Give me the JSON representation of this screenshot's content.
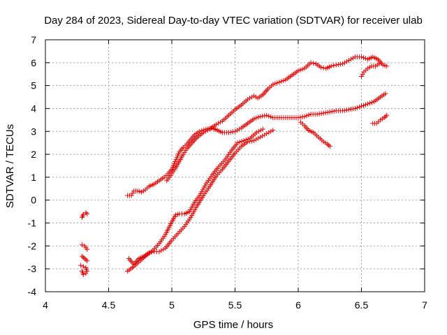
{
  "chart_data": {
    "type": "scatter",
    "title": "Day 284 of 2023, Sidereal Day-to-day VTEC variation (SDTVAR) for receiver ulab",
    "xlabel": "GPS time / hours",
    "ylabel": "SDTVAR / TECUs",
    "xlim": [
      4,
      7
    ],
    "ylim": [
      -4,
      7
    ],
    "xticks": [
      "4",
      "4.5",
      "5",
      "5.5",
      "6",
      "6.5",
      "7"
    ],
    "yticks": [
      "-4",
      "-3",
      "-2",
      "-1",
      "0",
      "1",
      "2",
      "3",
      "4",
      "5",
      "6",
      "7"
    ],
    "grid": true,
    "marker": "+",
    "marker_color": "#e00000",
    "tracks": [
      [
        [
          4.29,
          -0.75
        ],
        [
          4.3,
          -0.62
        ],
        [
          4.32,
          -0.55
        ],
        [
          4.33,
          -0.6
        ]
      ],
      [
        [
          4.29,
          -1.95
        ],
        [
          4.31,
          -2.0
        ],
        [
          4.33,
          -2.15
        ]
      ],
      [
        [
          4.29,
          -2.45
        ],
        [
          4.3,
          -2.5
        ],
        [
          4.32,
          -2.6
        ],
        [
          4.33,
          -2.65
        ]
      ],
      [
        [
          4.28,
          -2.85
        ],
        [
          4.3,
          -2.9
        ],
        [
          4.32,
          -2.95
        ],
        [
          4.33,
          -3.1
        ]
      ],
      [
        [
          4.29,
          -3.1
        ],
        [
          4.3,
          -3.25
        ],
        [
          4.32,
          -3.2
        ]
      ],
      [
        [
          4.65,
          0.2
        ],
        [
          4.68,
          0.2
        ],
        [
          4.7,
          0.4
        ],
        [
          4.73,
          0.4
        ],
        [
          4.76,
          0.35
        ],
        [
          4.79,
          0.45
        ],
        [
          4.82,
          0.6
        ],
        [
          4.86,
          0.7
        ],
        [
          4.9,
          0.85
        ],
        [
          4.94,
          1.0
        ],
        [
          4.97,
          1.15
        ],
        [
          5.0,
          1.35
        ],
        [
          5.02,
          1.6
        ],
        [
          5.04,
          1.85
        ],
        [
          5.06,
          2.1
        ],
        [
          5.09,
          2.3
        ],
        [
          5.12,
          2.45
        ],
        [
          5.15,
          2.65
        ],
        [
          5.18,
          2.85
        ],
        [
          5.22,
          3.0
        ],
        [
          5.27,
          3.1
        ],
        [
          5.32,
          3.15
        ],
        [
          5.36,
          3.05
        ],
        [
          5.4,
          2.95
        ],
        [
          5.45,
          2.95
        ],
        [
          5.5,
          3.0
        ],
        [
          5.55,
          3.15
        ],
        [
          5.6,
          3.35
        ],
        [
          5.65,
          3.55
        ],
        [
          5.7,
          3.65
        ],
        [
          5.75,
          3.7
        ],
        [
          5.8,
          3.6
        ],
        [
          5.85,
          3.6
        ],
        [
          5.9,
          3.6
        ],
        [
          5.95,
          3.6
        ],
        [
          6.0,
          3.6
        ],
        [
          6.05,
          3.65
        ],
        [
          6.1,
          3.75
        ],
        [
          6.15,
          3.75
        ],
        [
          6.2,
          3.8
        ],
        [
          6.25,
          3.85
        ],
        [
          6.3,
          3.9
        ],
        [
          6.35,
          3.9
        ],
        [
          6.4,
          3.95
        ],
        [
          6.45,
          4.0
        ],
        [
          6.5,
          4.1
        ],
        [
          6.55,
          4.2
        ],
        [
          6.6,
          4.3
        ],
        [
          6.65,
          4.5
        ],
        [
          6.69,
          4.65
        ]
      ],
      [
        [
          4.96,
          0.85
        ],
        [
          4.98,
          1.0
        ],
        [
          5.0,
          1.15
        ],
        [
          5.03,
          1.4
        ],
        [
          5.06,
          1.7
        ],
        [
          5.09,
          2.0
        ],
        [
          5.12,
          2.25
        ],
        [
          5.16,
          2.5
        ],
        [
          5.2,
          2.75
        ],
        [
          5.25,
          2.95
        ],
        [
          5.3,
          3.1
        ],
        [
          5.35,
          3.3
        ],
        [
          5.4,
          3.45
        ],
        [
          5.45,
          3.7
        ],
        [
          5.5,
          3.95
        ],
        [
          5.55,
          4.15
        ],
        [
          5.6,
          4.4
        ],
        [
          5.65,
          4.55
        ],
        [
          5.68,
          4.45
        ],
        [
          5.72,
          4.6
        ],
        [
          5.76,
          4.85
        ],
        [
          5.8,
          5.05
        ],
        [
          5.85,
          5.15
        ],
        [
          5.9,
          5.25
        ],
        [
          5.95,
          5.45
        ],
        [
          6.0,
          5.65
        ],
        [
          6.05,
          5.75
        ],
        [
          6.1,
          6.0
        ],
        [
          6.14,
          5.95
        ],
        [
          6.18,
          5.8
        ],
        [
          6.22,
          5.75
        ],
        [
          6.26,
          5.85
        ],
        [
          6.3,
          5.9
        ],
        [
          6.35,
          5.95
        ],
        [
          6.4,
          6.1
        ],
        [
          6.45,
          6.25
        ],
        [
          6.5,
          6.25
        ],
        [
          6.55,
          6.15
        ],
        [
          6.59,
          6.25
        ],
        [
          6.63,
          6.15
        ],
        [
          6.67,
          5.9
        ],
        [
          6.7,
          5.85
        ]
      ],
      [
        [
          6.5,
          5.4
        ],
        [
          6.52,
          5.6
        ],
        [
          6.55,
          5.75
        ],
        [
          6.58,
          5.85
        ],
        [
          6.61,
          5.85
        ],
        [
          6.64,
          5.95
        ]
      ],
      [
        [
          6.59,
          3.35
        ],
        [
          6.62,
          3.35
        ],
        [
          6.65,
          3.5
        ],
        [
          6.68,
          3.6
        ],
        [
          6.7,
          3.7
        ]
      ],
      [
        [
          6.02,
          3.4
        ],
        [
          6.05,
          3.25
        ],
        [
          6.08,
          3.05
        ],
        [
          6.12,
          2.95
        ],
        [
          6.16,
          2.75
        ],
        [
          6.2,
          2.55
        ],
        [
          6.23,
          2.45
        ],
        [
          6.25,
          2.35
        ]
      ],
      [
        [
          4.66,
          -2.55
        ],
        [
          4.7,
          -2.8
        ],
        [
          4.74,
          -2.55
        ],
        [
          4.78,
          -2.45
        ],
        [
          4.82,
          -2.3
        ],
        [
          4.86,
          -2.25
        ],
        [
          4.9,
          -2.25
        ],
        [
          4.95,
          -2.1
        ],
        [
          5.0,
          -1.75
        ],
        [
          5.05,
          -1.45
        ],
        [
          5.1,
          -1.15
        ],
        [
          5.15,
          -0.75
        ],
        [
          5.2,
          -0.25
        ],
        [
          5.25,
          0.2
        ],
        [
          5.3,
          0.6
        ],
        [
          5.35,
          1.05
        ],
        [
          5.4,
          1.35
        ],
        [
          5.45,
          1.7
        ],
        [
          5.5,
          2.05
        ],
        [
          5.55,
          2.35
        ],
        [
          5.6,
          2.55
        ],
        [
          5.65,
          2.6
        ],
        [
          5.7,
          2.75
        ],
        [
          5.75,
          2.9
        ],
        [
          5.8,
          3.05
        ]
      ],
      [
        [
          4.65,
          -3.1
        ],
        [
          4.7,
          -2.9
        ],
        [
          4.75,
          -2.65
        ],
        [
          4.8,
          -2.4
        ],
        [
          4.85,
          -2.2
        ],
        [
          4.9,
          -1.9
        ],
        [
          4.95,
          -1.5
        ],
        [
          5.0,
          -0.95
        ],
        [
          5.03,
          -0.65
        ],
        [
          5.06,
          -0.6
        ],
        [
          5.1,
          -0.6
        ],
        [
          5.14,
          -0.5
        ],
        [
          5.18,
          -0.1
        ],
        [
          5.22,
          0.2
        ],
        [
          5.27,
          0.7
        ],
        [
          5.32,
          1.1
        ],
        [
          5.37,
          1.45
        ],
        [
          5.42,
          1.75
        ],
        [
          5.47,
          2.15
        ],
        [
          5.52,
          2.5
        ],
        [
          5.57,
          2.6
        ],
        [
          5.62,
          2.7
        ],
        [
          5.67,
          2.95
        ],
        [
          5.72,
          3.1
        ]
      ]
    ]
  }
}
